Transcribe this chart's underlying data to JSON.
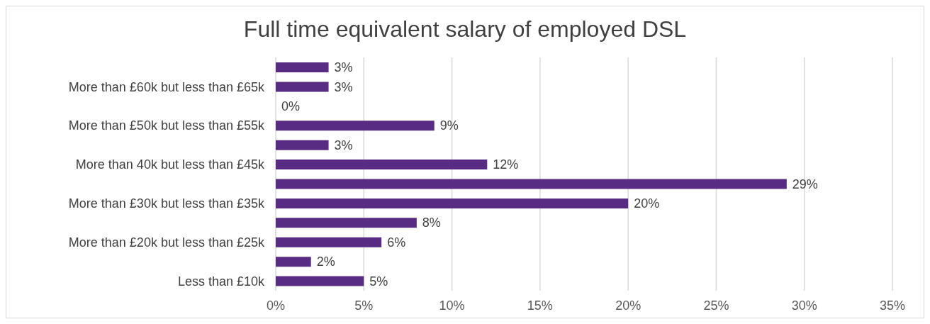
{
  "chart_data": {
    "type": "bar",
    "orientation": "horizontal",
    "title": "Full time equivalent salary of employed DSL",
    "categories": [
      null,
      "More than £60k but less than £65k",
      null,
      "More than £50k but less than £55k",
      null,
      "More than 40k but less than £45k",
      null,
      "More than £30k but less than £35k",
      null,
      "More than £20k but less than £25k",
      null,
      "Less than £10k"
    ],
    "values": [
      3,
      3,
      0,
      9,
      3,
      12,
      29,
      20,
      8,
      6,
      2,
      5
    ],
    "value_labels": [
      "3%",
      "3%",
      "0%",
      "9%",
      "3%",
      "12%",
      "29%",
      "20%",
      "8%",
      "6%",
      "2%",
      "5%"
    ],
    "color": "#582c83",
    "xlim": [
      0,
      35
    ],
    "xticks": [
      {
        "value": 0,
        "label": "0%"
      },
      {
        "value": 5,
        "label": "5%"
      },
      {
        "value": 10,
        "label": "10%"
      },
      {
        "value": 15,
        "label": "15%"
      },
      {
        "value": 20,
        "label": "20%"
      },
      {
        "value": 25,
        "label": "25%"
      },
      {
        "value": 30,
        "label": "30%"
      },
      {
        "value": 35,
        "label": "35%"
      }
    ],
    "grid": "x",
    "legend": false
  }
}
